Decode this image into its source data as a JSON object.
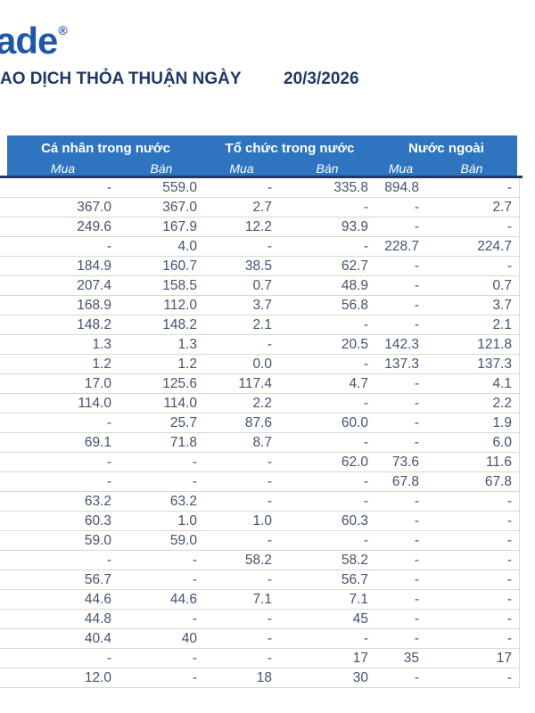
{
  "brand": {
    "logo_text": "ade",
    "registered_mark": "®",
    "logo_color": "#2157A7"
  },
  "header": {
    "title": "AO DỊCH THỎA THUẬN NGÀY",
    "date": "20/3/2026",
    "title_color": "#1F3864"
  },
  "table": {
    "groups": [
      {
        "label": "Cá nhân trong nước"
      },
      {
        "label": "Tổ chức trong nước"
      },
      {
        "label": "Nước ngoài"
      }
    ],
    "subheaders": [
      "Mua",
      "Bán",
      "Mua",
      "Bán",
      "Mua",
      "Bán"
    ],
    "rows": [
      [
        "-",
        "559.0",
        "-",
        "335.8",
        "894.8",
        "-"
      ],
      [
        "367.0",
        "367.0",
        "2.7",
        "-",
        "-",
        "2.7"
      ],
      [
        "249.6",
        "167.9",
        "12.2",
        "93.9",
        "-",
        "-"
      ],
      [
        "-",
        "4.0",
        "-",
        "-",
        "228.7",
        "224.7"
      ],
      [
        "184.9",
        "160.7",
        "38.5",
        "62.7",
        "-",
        "-"
      ],
      [
        "207.4",
        "158.5",
        "0.7",
        "48.9",
        "-",
        "0.7"
      ],
      [
        "168.9",
        "112.0",
        "3.7",
        "56.8",
        "-",
        "3.7"
      ],
      [
        "148.2",
        "148.2",
        "2.1",
        "-",
        "-",
        "2.1"
      ],
      [
        "1.3",
        "1.3",
        "-",
        "20.5",
        "142.3",
        "121.8"
      ],
      [
        "1.2",
        "1.2",
        "0.0",
        "-",
        "137.3",
        "137.3"
      ],
      [
        "17.0",
        "125.6",
        "117.4",
        "4.7",
        "-",
        "4.1"
      ],
      [
        "114.0",
        "114.0",
        "2.2",
        "-",
        "-",
        "2.2"
      ],
      [
        "-",
        "25.7",
        "87.6",
        "60.0",
        "-",
        "1.9"
      ],
      [
        "69.1",
        "71.8",
        "8.7",
        "-",
        "-",
        "6.0"
      ],
      [
        "-",
        "-",
        "-",
        "62.0",
        "73.6",
        "11.6"
      ],
      [
        "-",
        "-",
        "-",
        "-",
        "67.8",
        "67.8"
      ],
      [
        "63.2",
        "63.2",
        "-",
        "-",
        "-",
        "-"
      ],
      [
        "60.3",
        "1.0",
        "1.0",
        "60.3",
        "-",
        "-"
      ],
      [
        "59.0",
        "59.0",
        "-",
        "-",
        "-",
        "-"
      ],
      [
        "-",
        "-",
        "58.2",
        "58.2",
        "-",
        "-"
      ],
      [
        "56.7",
        "-",
        "-",
        "56.7",
        "-",
        "-"
      ],
      [
        "44.6",
        "44.6",
        "7.1",
        "7.1",
        "-",
        "-"
      ],
      [
        "44.8",
        "-",
        "-",
        "45",
        "-",
        "-"
      ],
      [
        "40.4",
        "40",
        "-",
        "-",
        "-",
        "-"
      ],
      [
        "-",
        "-",
        "-",
        "17",
        "35",
        "17"
      ],
      [
        "12.0",
        "-",
        "18",
        "30",
        "-",
        "-"
      ]
    ],
    "colors": {
      "header_background": "#2F74BF",
      "header_text": "#ffffff",
      "header_divider": "#1F3864",
      "cell_text": "#44546A",
      "row_line": "#D9D9CB"
    }
  }
}
